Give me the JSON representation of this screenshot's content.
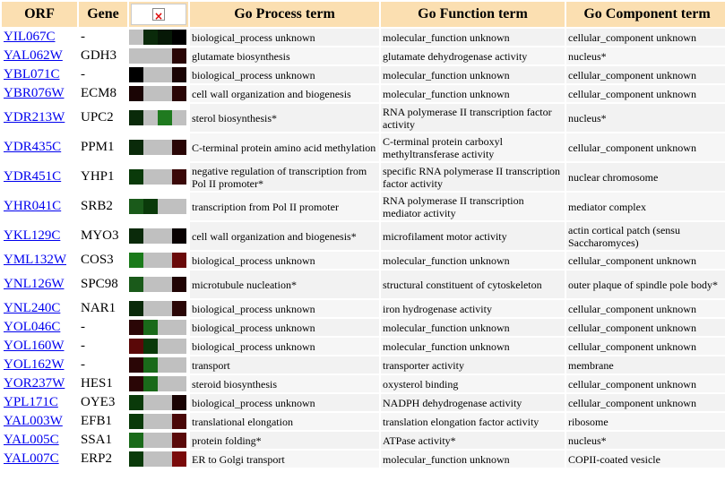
{
  "headers": {
    "orf": "ORF",
    "gene": "Gene",
    "process": "Go Process term",
    "function": "Go Function term",
    "component": "Go Component term"
  },
  "header_image_icon": "broken-image-icon",
  "colors": {
    "header_bg": "#fbdfb1",
    "link": "#0000ee",
    "missing": "#c0c0c0"
  },
  "rows": [
    {
      "orf": "YIL067C",
      "gene": "-",
      "process": "biological_process unknown",
      "function": "molecular_function unknown",
      "component": "cellular_component unknown",
      "expr": [
        "#c0c0c0",
        "#0a2a0a",
        "#061806",
        "#000000"
      ]
    },
    {
      "orf": "YAL062W",
      "gene": "GDH3",
      "process": "glutamate biosynthesis",
      "function": "glutamate dehydrogenase activity",
      "component": "nucleus*",
      "expr": [
        "#c0c0c0",
        "#c0c0c0",
        "#c0c0c0",
        "#2a0606"
      ]
    },
    {
      "orf": "YBL071C",
      "gene": "-",
      "process": "biological_process unknown",
      "function": "molecular_function unknown",
      "component": "cellular_component unknown",
      "expr": [
        "#000000",
        "#c0c0c0",
        "#c0c0c0",
        "#1a0404"
      ]
    },
    {
      "orf": "YBR076W",
      "gene": "ECM8",
      "process": "cell wall organization and biogenesis",
      "function": "molecular_function unknown",
      "component": "cellular_component unknown",
      "expr": [
        "#1a0404",
        "#c0c0c0",
        "#c0c0c0",
        "#2a0606"
      ]
    },
    {
      "orf": "YDR213W",
      "gene": "UPC2",
      "process": "sterol biosynthesis*",
      "function": "RNA polymerase II transcription factor activity",
      "component": "nucleus*",
      "expr": [
        "#0a2a0a",
        "#c0c0c0",
        "#1f7a1f",
        "#c0c0c0"
      ]
    },
    {
      "orf": "YDR435C",
      "gene": "PPM1",
      "process": "C-terminal protein amino acid methylation",
      "function": "C-terminal protein carboxyl methyltransferase activity",
      "component": "cellular_component unknown",
      "expr": [
        "#0a2a0a",
        "#c0c0c0",
        "#c0c0c0",
        "#2a0606"
      ]
    },
    {
      "orf": "YDR451C",
      "gene": "YHP1",
      "process": "negative regulation of transcription from Pol II promoter*",
      "function": "specific RNA polymerase II transcription factor activity",
      "component": "nuclear chromosome",
      "expr": [
        "#0a3a0a",
        "#c0c0c0",
        "#c0c0c0",
        "#3a0808"
      ]
    },
    {
      "orf": "YHR041C",
      "gene": "SRB2",
      "process": "transcription from Pol II promoter",
      "function": "RNA polymerase II transcription mediator activity",
      "component": "mediator complex",
      "expr": [
        "#1a5a1a",
        "#0a3a0a",
        "#c0c0c0",
        "#c0c0c0"
      ]
    },
    {
      "orf": "YKL129C",
      "gene": "MYO3",
      "process": "cell wall organization and biogenesis*",
      "function": "microfilament motor activity",
      "component": "actin cortical patch (sensu Saccharomyces)",
      "expr": [
        "#0a2a0a",
        "#c0c0c0",
        "#c0c0c0",
        "#0a0202"
      ]
    },
    {
      "orf": "YML132W",
      "gene": "COS3",
      "process": "biological_process unknown",
      "function": "molecular_function unknown",
      "component": "cellular_component unknown",
      "expr": [
        "#1a7a1a",
        "#c0c0c0",
        "#c0c0c0",
        "#6a0a0a"
      ]
    },
    {
      "orf": "YNL126W",
      "gene": "SPC98",
      "process": "microtubule nucleation*",
      "function": "structural constituent of cytoskeleton",
      "component": "outer plaque of spindle pole body*",
      "expr": [
        "#1a5a1a",
        "#c0c0c0",
        "#c0c0c0",
        "#200404"
      ]
    },
    {
      "orf": "YNL240C",
      "gene": "NAR1",
      "process": "biological_process unknown",
      "function": "iron hydrogenase activity",
      "component": "cellular_component unknown",
      "expr": [
        "#0a2a0a",
        "#c0c0c0",
        "#c0c0c0",
        "#2a0606"
      ]
    },
    {
      "orf": "YOL046C",
      "gene": "-",
      "process": "biological_process unknown",
      "function": "molecular_function unknown",
      "component": "cellular_component unknown",
      "expr": [
        "#2a0606",
        "#1a6a1a",
        "#c0c0c0",
        "#c0c0c0"
      ]
    },
    {
      "orf": "YOL160W",
      "gene": "-",
      "process": "biological_process unknown",
      "function": "molecular_function unknown",
      "component": "cellular_component unknown",
      "expr": [
        "#5a0808",
        "#0a3a0a",
        "#c0c0c0",
        "#c0c0c0"
      ]
    },
    {
      "orf": "YOL162W",
      "gene": "-",
      "process": "transport",
      "function": "transporter activity",
      "component": "membrane",
      "expr": [
        "#2a0606",
        "#1a6a1a",
        "#c0c0c0",
        "#c0c0c0"
      ]
    },
    {
      "orf": "YOR237W",
      "gene": "HES1",
      "process": "steroid biosynthesis",
      "function": "oxysterol binding",
      "component": "cellular_component unknown",
      "expr": [
        "#2a0606",
        "#1a6a1a",
        "#c0c0c0",
        "#c0c0c0"
      ]
    },
    {
      "orf": "YPL171C",
      "gene": "OYE3",
      "process": "biological_process unknown",
      "function": "NADPH dehydrogenase activity",
      "component": "cellular_component unknown",
      "expr": [
        "#0a3a0a",
        "#c0c0c0",
        "#c0c0c0",
        "#1a0404"
      ]
    },
    {
      "orf": "YAL003W",
      "gene": "EFB1",
      "process": "translational elongation",
      "function": "translation elongation factor activity",
      "component": "ribosome",
      "expr": [
        "#0a3a0a",
        "#c0c0c0",
        "#c0c0c0",
        "#4a0808"
      ]
    },
    {
      "orf": "YAL005C",
      "gene": "SSA1",
      "process": "protein folding*",
      "function": "ATPase activity*",
      "component": "nucleus*",
      "expr": [
        "#1a6a1a",
        "#c0c0c0",
        "#c0c0c0",
        "#5a0a0a"
      ]
    },
    {
      "orf": "YAL007C",
      "gene": "ERP2",
      "process": "ER to Golgi transport",
      "function": "molecular_function unknown",
      "component": "COPII-coated vesicle",
      "expr": [
        "#0a3a0a",
        "#c0c0c0",
        "#c0c0c0",
        "#7a0a0a"
      ]
    }
  ]
}
